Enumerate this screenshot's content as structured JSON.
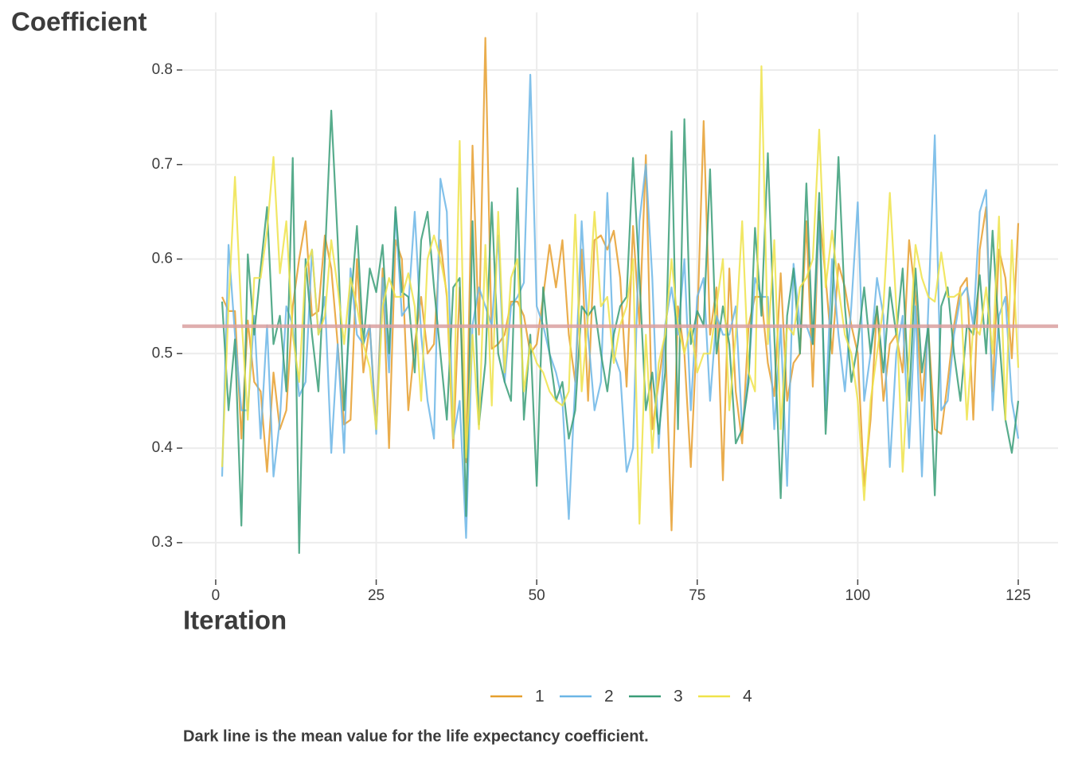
{
  "chart_data": {
    "type": "line",
    "y_label": "Coefficient",
    "x_label": "Iteration",
    "caption": "Dark line is the mean value for the life expectancy coefficient.",
    "xlim": [
      -5.2,
      131.2
    ],
    "ylim": [
      0.262,
      0.861
    ],
    "xticks": [
      0,
      25,
      50,
      75,
      100,
      125
    ],
    "yticks": [
      0.3,
      0.4,
      0.5,
      0.6,
      0.7,
      0.8
    ],
    "grid": true,
    "legend": "bottom",
    "mean_line": {
      "value": 0.529,
      "color": "#d9a0a0"
    },
    "x": [
      1,
      2,
      3,
      4,
      5,
      6,
      7,
      8,
      9,
      10,
      11,
      12,
      13,
      14,
      15,
      16,
      17,
      18,
      19,
      20,
      21,
      22,
      23,
      24,
      25,
      26,
      27,
      28,
      29,
      30,
      31,
      32,
      33,
      34,
      35,
      36,
      37,
      38,
      39,
      40,
      41,
      42,
      43,
      44,
      45,
      46,
      47,
      48,
      49,
      50,
      51,
      52,
      53,
      54,
      55,
      56,
      57,
      58,
      59,
      60,
      61,
      62,
      63,
      64,
      65,
      66,
      67,
      68,
      69,
      70,
      71,
      72,
      73,
      74,
      75,
      76,
      77,
      78,
      79,
      80,
      81,
      82,
      83,
      84,
      85,
      86,
      87,
      88,
      89,
      90,
      91,
      92,
      93,
      94,
      95,
      96,
      97,
      98,
      99,
      100,
      101,
      102,
      103,
      104,
      105,
      106,
      107,
      108,
      109,
      110,
      111,
      112,
      113,
      114,
      115,
      116,
      117,
      118,
      119,
      120,
      121,
      122,
      123,
      124,
      125
    ],
    "series": [
      {
        "name": "1",
        "color": "#e69f2e",
        "values": [
          0.56,
          0.545,
          0.545,
          0.41,
          0.535,
          0.47,
          0.46,
          0.375,
          0.48,
          0.42,
          0.44,
          0.55,
          0.6,
          0.64,
          0.54,
          0.545,
          0.625,
          0.59,
          0.51,
          0.425,
          0.43,
          0.6,
          0.48,
          0.53,
          0.42,
          0.59,
          0.4,
          0.62,
          0.6,
          0.44,
          0.51,
          0.56,
          0.5,
          0.51,
          0.62,
          0.56,
          0.4,
          0.57,
          0.385,
          0.72,
          0.52,
          0.834,
          0.505,
          0.51,
          0.52,
          0.555,
          0.555,
          0.54,
          0.5,
          0.51,
          0.56,
          0.615,
          0.57,
          0.62,
          0.52,
          0.47,
          0.61,
          0.45,
          0.62,
          0.625,
          0.61,
          0.63,
          0.58,
          0.465,
          0.635,
          0.53,
          0.71,
          0.42,
          0.47,
          0.52,
          0.313,
          0.55,
          0.5,
          0.38,
          0.53,
          0.746,
          0.52,
          0.57,
          0.366,
          0.59,
          0.46,
          0.405,
          0.53,
          0.56,
          0.56,
          0.49,
          0.455,
          0.585,
          0.45,
          0.49,
          0.5,
          0.64,
          0.465,
          0.65,
          0.58,
          0.5,
          0.595,
          0.57,
          0.53,
          0.5,
          0.36,
          0.43,
          0.55,
          0.45,
          0.51,
          0.52,
          0.48,
          0.62,
          0.56,
          0.45,
          0.525,
          0.42,
          0.415,
          0.47,
          0.53,
          0.57,
          0.58,
          0.43,
          0.61,
          0.655,
          0.46,
          0.61,
          0.58,
          0.495,
          0.638
        ]
      },
      {
        "name": "2",
        "color": "#6cb6e6",
        "values": [
          0.37,
          0.615,
          0.52,
          0.44,
          0.44,
          0.54,
          0.41,
          0.53,
          0.37,
          0.43,
          0.55,
          0.53,
          0.455,
          0.47,
          0.61,
          0.52,
          0.56,
          0.395,
          0.51,
          0.395,
          0.59,
          0.52,
          0.51,
          0.53,
          0.415,
          0.58,
          0.48,
          0.65,
          0.54,
          0.55,
          0.65,
          0.52,
          0.45,
          0.41,
          0.685,
          0.65,
          0.41,
          0.45,
          0.305,
          0.53,
          0.57,
          0.55,
          0.53,
          0.625,
          0.47,
          0.55,
          0.56,
          0.575,
          0.795,
          0.55,
          0.53,
          0.5,
          0.48,
          0.45,
          0.325,
          0.47,
          0.64,
          0.52,
          0.44,
          0.47,
          0.67,
          0.5,
          0.48,
          0.375,
          0.4,
          0.64,
          0.7,
          0.58,
          0.4,
          0.53,
          0.57,
          0.52,
          0.6,
          0.44,
          0.56,
          0.58,
          0.45,
          0.54,
          0.52,
          0.52,
          0.55,
          0.42,
          0.48,
          0.58,
          0.56,
          0.56,
          0.42,
          0.53,
          0.36,
          0.595,
          0.53,
          0.53,
          0.51,
          0.64,
          0.44,
          0.6,
          0.52,
          0.46,
          0.55,
          0.66,
          0.45,
          0.5,
          0.58,
          0.54,
          0.38,
          0.5,
          0.54,
          0.4,
          0.55,
          0.37,
          0.55,
          0.731,
          0.44,
          0.45,
          0.52,
          0.56,
          0.57,
          0.53,
          0.65,
          0.673,
          0.44,
          0.54,
          0.56,
          0.45,
          0.41
        ]
      },
      {
        "name": "3",
        "color": "#3a9d78",
        "values": [
          0.555,
          0.44,
          0.515,
          0.318,
          0.605,
          0.52,
          0.59,
          0.655,
          0.51,
          0.54,
          0.46,
          0.707,
          0.289,
          0.6,
          0.52,
          0.46,
          0.6,
          0.757,
          0.62,
          0.44,
          0.55,
          0.635,
          0.51,
          0.59,
          0.565,
          0.615,
          0.5,
          0.655,
          0.565,
          0.56,
          0.48,
          0.62,
          0.65,
          0.57,
          0.5,
          0.43,
          0.57,
          0.58,
          0.328,
          0.64,
          0.425,
          0.49,
          0.66,
          0.5,
          0.47,
          0.45,
          0.675,
          0.43,
          0.52,
          0.36,
          0.57,
          0.5,
          0.45,
          0.47,
          0.41,
          0.44,
          0.55,
          0.54,
          0.55,
          0.5,
          0.46,
          0.52,
          0.55,
          0.56,
          0.707,
          0.58,
          0.44,
          0.48,
          0.415,
          0.48,
          0.735,
          0.42,
          0.748,
          0.51,
          0.545,
          0.53,
          0.695,
          0.5,
          0.55,
          0.51,
          0.405,
          0.42,
          0.47,
          0.633,
          0.54,
          0.712,
          0.52,
          0.347,
          0.54,
          0.59,
          0.5,
          0.68,
          0.51,
          0.67,
          0.415,
          0.55,
          0.708,
          0.55,
          0.47,
          0.51,
          0.57,
          0.5,
          0.55,
          0.48,
          0.57,
          0.52,
          0.59,
          0.45,
          0.59,
          0.48,
          0.53,
          0.35,
          0.55,
          0.57,
          0.5,
          0.45,
          0.53,
          0.52,
          0.583,
          0.5,
          0.63,
          0.52,
          0.43,
          0.395,
          0.45
        ]
      },
      {
        "name": "4",
        "color": "#efe34a",
        "values": [
          0.38,
          0.55,
          0.687,
          0.54,
          0.43,
          0.58,
          0.58,
          0.63,
          0.708,
          0.585,
          0.64,
          0.52,
          0.47,
          0.59,
          0.61,
          0.52,
          0.54,
          0.62,
          0.57,
          0.51,
          0.58,
          0.55,
          0.51,
          0.485,
          0.42,
          0.55,
          0.58,
          0.56,
          0.56,
          0.585,
          0.55,
          0.45,
          0.6,
          0.625,
          0.6,
          0.565,
          0.41,
          0.725,
          0.39,
          0.52,
          0.42,
          0.615,
          0.445,
          0.65,
          0.48,
          0.58,
          0.6,
          0.46,
          0.51,
          0.49,
          0.48,
          0.46,
          0.45,
          0.445,
          0.46,
          0.647,
          0.46,
          0.54,
          0.65,
          0.55,
          0.56,
          0.49,
          0.53,
          0.55,
          0.6,
          0.32,
          0.52,
          0.395,
          0.49,
          0.52,
          0.6,
          0.53,
          0.5,
          0.53,
          0.48,
          0.5,
          0.5,
          0.55,
          0.6,
          0.44,
          0.52,
          0.64,
          0.48,
          0.46,
          0.804,
          0.51,
          0.62,
          0.42,
          0.53,
          0.52,
          0.57,
          0.58,
          0.6,
          0.737,
          0.57,
          0.63,
          0.57,
          0.52,
          0.5,
          0.45,
          0.345,
          0.45,
          0.5,
          0.55,
          0.67,
          0.55,
          0.375,
          0.5,
          0.615,
          0.58,
          0.56,
          0.555,
          0.607,
          0.56,
          0.56,
          0.565,
          0.43,
          0.53,
          0.52,
          0.57,
          0.5,
          0.645,
          0.43,
          0.62,
          0.485
        ]
      }
    ]
  }
}
